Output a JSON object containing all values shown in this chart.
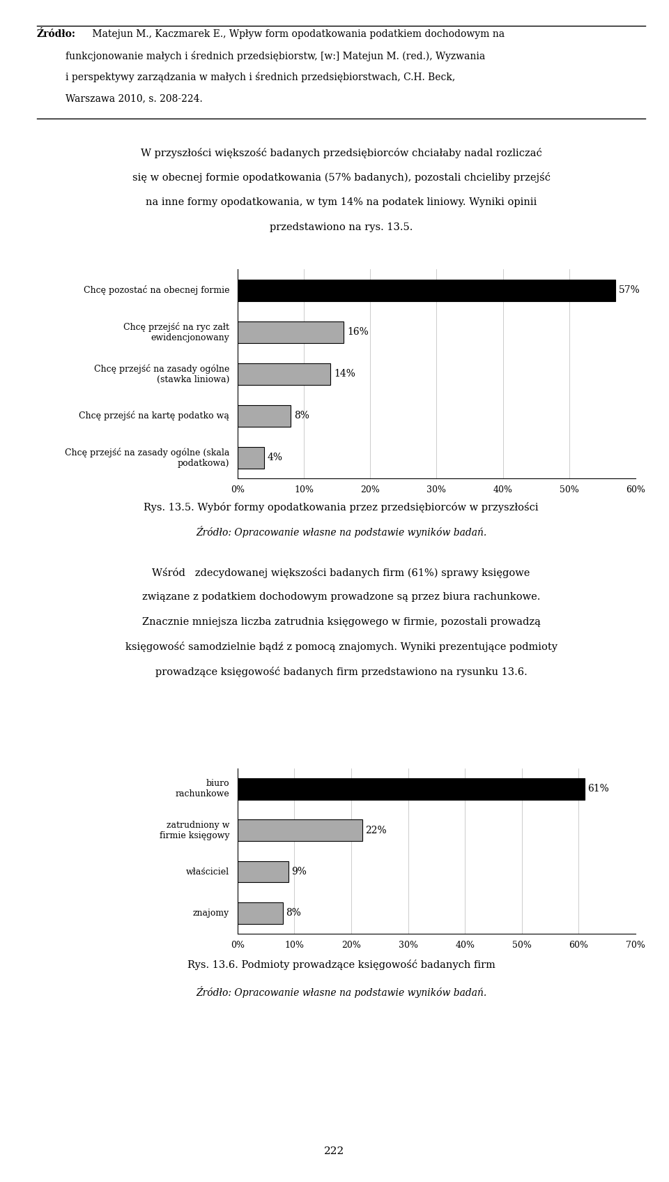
{
  "header_bold": "Zródło:",
  "header_body": " Matejun M., Kaczmarek E., Wpływ form opodatkowania podatkiem dochodowym na funkcjonowanie małych i średnich przedsiębiorstw, [w:] Matejun M. (red.), Wyzwania i perspektywy zarządzania w małych i średnich przedsiębiorstwach, C.H. Beck, Warszawa 2010, s. 208-224.",
  "chart1_cat_labels": [
    "Ch cę pozostać na obecnej formie",
    "Chcę przejść na ryc załt\newidencjonowany",
    "Chcę przejść na zasady ogólne\n(stawka liniowa)",
    "Chcę przejść na kartę podatko wą",
    "Chcę przejść na zasady ogólne (skala\npodatkowa)"
  ],
  "chart1_values": [
    57,
    16,
    14,
    8,
    4
  ],
  "chart1_colors": [
    "#000000",
    "#aaaaaa",
    "#aaaaaa",
    "#aaaaaa",
    "#aaaaaa"
  ],
  "chart1_xlim": 60,
  "chart1_xtick_labels": [
    "0%",
    "10%",
    "20%",
    "30%",
    "40%",
    "50%",
    "60%"
  ],
  "chart1_xticks": [
    0,
    10,
    20,
    30,
    40,
    50,
    60
  ],
  "caption1_bold": "Rys. 13.5.",
  "caption1_rest": " Wybór formy opodatkowania przez przedsiębiorców w przyszłości",
  "caption1_italic": "Źródło: Opracowanie własne na podstawie wyników badań.",
  "chart2_cat_labels": [
    "biuro\nrachunkowe",
    "zatrudniony w\nfirmie księgowy",
    "właściciel",
    "znajomy"
  ],
  "chart2_values": [
    61,
    22,
    9,
    8
  ],
  "chart2_colors": [
    "#000000",
    "#aaaaaa",
    "#aaaaaa",
    "#aaaaaa"
  ],
  "chart2_xlim": 70,
  "chart2_xtick_labels": [
    "0%",
    "10%",
    "20%",
    "30%",
    "40%",
    "50%",
    "60%",
    "70%"
  ],
  "chart2_xticks": [
    0,
    10,
    20,
    30,
    40,
    50,
    60,
    70
  ],
  "caption2_bold": "Rys. 13.6.",
  "caption2_rest": " Podmioty prowadzące księgowość badanych firm",
  "caption2_italic": "Źródło: Opracowanie własne na podstawie wyników badań.",
  "page_number": "222",
  "background_color": "#ffffff"
}
